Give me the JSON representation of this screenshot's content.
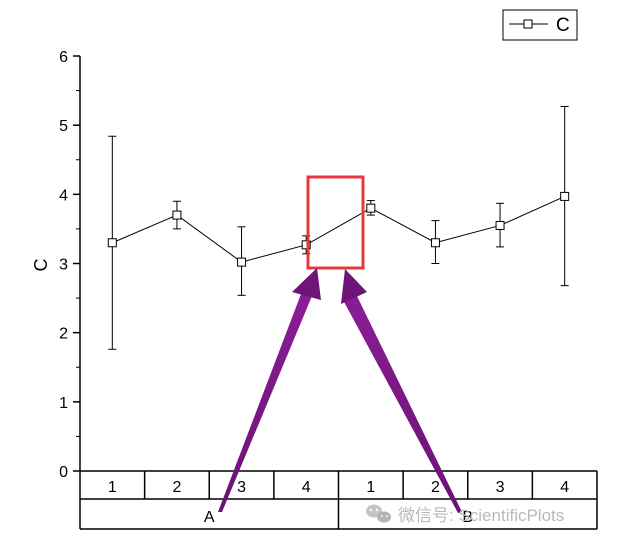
{
  "chart_data": {
    "type": "line",
    "ylabel": "C",
    "ylim": [
      0,
      6
    ],
    "yticks": [
      "0",
      "1",
      "2",
      "3",
      "4",
      "5",
      "6"
    ],
    "grid": false,
    "legend": {
      "placement": "top-right",
      "entries": [
        "C"
      ]
    },
    "groups": [
      {
        "name": "A",
        "categories": [
          "1",
          "2",
          "3",
          "4"
        ]
      },
      {
        "name": "B",
        "categories": [
          "1",
          "2",
          "3",
          "4"
        ]
      }
    ],
    "series": [
      {
        "name": "C",
        "marker": "square",
        "values": [
          3.3,
          3.7,
          3.02,
          3.27,
          3.8,
          3.3,
          3.55,
          3.97
        ],
        "error_low": [
          1.76,
          3.5,
          2.54,
          3.14,
          3.7,
          3.0,
          3.24,
          2.68
        ],
        "error_high": [
          4.84,
          3.9,
          3.53,
          3.4,
          3.91,
          3.62,
          3.87,
          5.27
        ]
      }
    ],
    "annotations": [
      {
        "type": "rectangle",
        "color": "#e8383d",
        "between_points": [
          4,
          5
        ]
      },
      {
        "type": "arrow",
        "color": "#7b1a86",
        "from": "A",
        "to": "rectangle"
      },
      {
        "type": "arrow",
        "color": "#7b1a86",
        "from": "B",
        "to": "rectangle"
      }
    ]
  },
  "watermark": {
    "text": "微信号: ScientificPlots",
    "icon": "wechat-icon"
  },
  "colors": {
    "line": "#000000",
    "highlight_box": "#e8383d",
    "arrow": "#7b1a86",
    "watermark": "#b9b9b9"
  }
}
